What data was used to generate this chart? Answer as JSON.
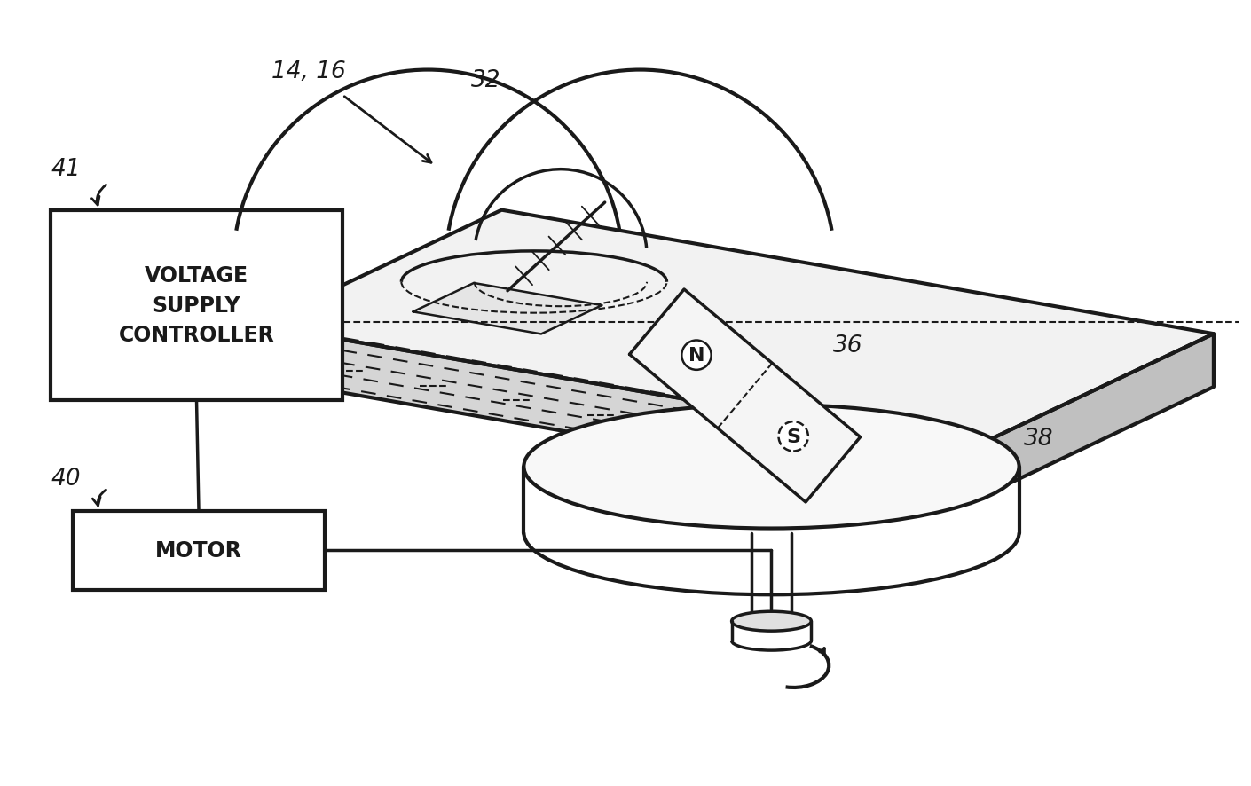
{
  "bg_color": "#ffffff",
  "line_color": "#1a1a1a",
  "lw_main": 2.5,
  "lw_thin": 1.5,
  "lw_thick": 3.0,
  "fig_w": 14.1,
  "fig_h": 8.87,
  "labels": {
    "14_16": "14, 16",
    "32": "32",
    "36": "36",
    "38": "38",
    "41": "41",
    "40": "40",
    "voltage": "VOLTAGE\nSUPPLY\nCONTROLLER",
    "motor": "MOTOR",
    "N": "N",
    "S": "S"
  }
}
